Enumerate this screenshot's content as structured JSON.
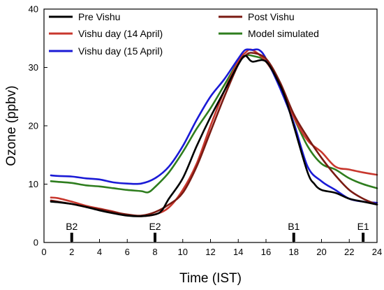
{
  "chart_data": {
    "type": "line",
    "title": "",
    "xlabel": "Time (IST)",
    "ylabel": "Ozone (ppbv)",
    "xlim": [
      0,
      24
    ],
    "ylim": [
      0,
      40
    ],
    "xticks": [
      0,
      2,
      4,
      6,
      8,
      10,
      12,
      14,
      16,
      18,
      20,
      22,
      24
    ],
    "yticks": [
      0,
      10,
      20,
      30,
      40
    ],
    "grid": false,
    "legend": "top",
    "series": [
      {
        "name": "Pre Vishu",
        "color": "#000000",
        "x": [
          0.5,
          1,
          2,
          3,
          4,
          5,
          6,
          7,
          8,
          8.5,
          9,
          10,
          11,
          12,
          13,
          14,
          14.5,
          15,
          16,
          17,
          17.5,
          18,
          19,
          19.5,
          20,
          21,
          22,
          23,
          24
        ],
        "y": [
          7.0,
          6.9,
          6.6,
          6.1,
          5.5,
          5.0,
          4.6,
          4.5,
          4.8,
          5.5,
          7.5,
          11.0,
          16.5,
          21.5,
          26.0,
          30.5,
          32.0,
          31.0,
          31.0,
          27.0,
          24.0,
          20.0,
          12.0,
          10.0,
          9.0,
          8.5,
          7.5,
          7.0,
          6.5
        ]
      },
      {
        "name": "Vishu day (14 April)",
        "color": "#c8372d",
        "x": [
          0.5,
          1,
          2,
          3,
          4,
          5,
          6,
          7,
          8,
          9,
          10,
          11,
          12,
          13,
          14,
          14.5,
          15,
          16,
          17,
          18,
          19,
          20,
          21,
          22,
          23,
          24
        ],
        "y": [
          7.7,
          7.6,
          7.0,
          6.3,
          5.8,
          5.3,
          4.7,
          4.5,
          4.8,
          6.0,
          9.0,
          13.5,
          20.0,
          26.0,
          31.0,
          32.5,
          33.0,
          31.0,
          27.0,
          21.5,
          17.5,
          15.5,
          13.0,
          12.5,
          12.0,
          11.6
        ]
      },
      {
        "name": "Vishu day (15 April)",
        "color": "#1a1ad6",
        "x": [
          0.5,
          1,
          2,
          3,
          4,
          5,
          6,
          7,
          8,
          9,
          10,
          11,
          12,
          13,
          14,
          14.5,
          15,
          15.5,
          16,
          17,
          18,
          19,
          20,
          21,
          22,
          23,
          24
        ],
        "y": [
          11.5,
          11.4,
          11.3,
          11.0,
          10.8,
          10.3,
          10.1,
          10.1,
          11.0,
          13.0,
          16.5,
          21.0,
          25.0,
          28.0,
          31.5,
          33.0,
          33.0,
          33.0,
          31.5,
          26.5,
          20.5,
          13.0,
          10.5,
          9.0,
          7.5,
          7.0,
          6.8
        ]
      },
      {
        "name": "Post Vishu",
        "color": "#7a1a12",
        "x": [
          0.5,
          1,
          2,
          3,
          4,
          5,
          6,
          7,
          8,
          9,
          10,
          11,
          12,
          13,
          14,
          14.5,
          15,
          16,
          17,
          18,
          19,
          20,
          21,
          22,
          23,
          24
        ],
        "y": [
          7.2,
          7.0,
          6.6,
          6.1,
          5.7,
          5.2,
          4.8,
          4.6,
          5.2,
          6.5,
          8.5,
          13.0,
          19.0,
          25.0,
          30.5,
          32.0,
          32.5,
          31.5,
          27.5,
          22.0,
          18.0,
          14.5,
          11.5,
          9.0,
          7.5,
          6.5
        ]
      },
      {
        "name": "Model simulated",
        "color": "#2e7d1e",
        "x": [
          0.5,
          1,
          2,
          3,
          4,
          5,
          6,
          7,
          7.5,
          8,
          9,
          10,
          11,
          12,
          13,
          14,
          14.5,
          15,
          16,
          17,
          18,
          19,
          20,
          21,
          22,
          23,
          24
        ],
        "y": [
          10.5,
          10.4,
          10.2,
          9.8,
          9.6,
          9.3,
          9.0,
          8.8,
          8.6,
          9.5,
          12.0,
          15.5,
          19.5,
          23.0,
          27.0,
          31.0,
          32.0,
          32.0,
          31.0,
          27.0,
          21.5,
          16.5,
          13.5,
          12.5,
          11.0,
          10.0,
          9.3
        ]
      }
    ],
    "markers": [
      {
        "label": "B2",
        "x": 2
      },
      {
        "label": "E2",
        "x": 8
      },
      {
        "label": "B1",
        "x": 18
      },
      {
        "label": "E1",
        "x": 23
      }
    ]
  }
}
